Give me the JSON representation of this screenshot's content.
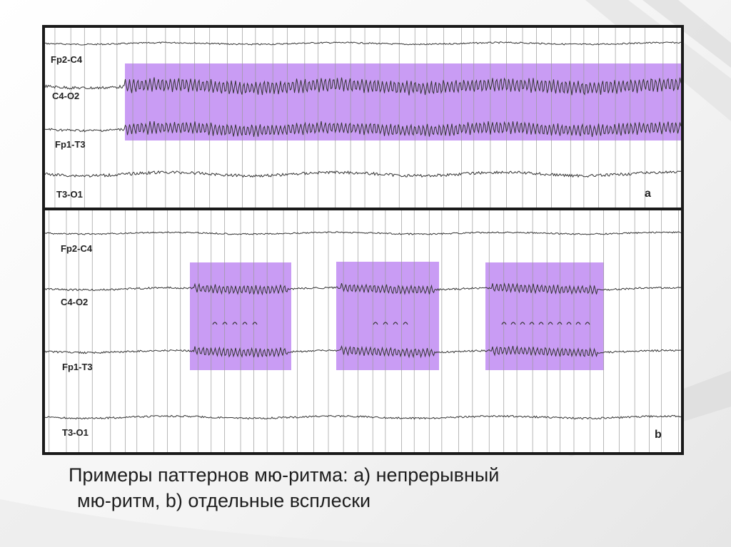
{
  "figure": {
    "panel_a": {
      "letter": "a",
      "channels": [
        {
          "label": "Fp2-C4"
        },
        {
          "label": "C4-O2"
        },
        {
          "label": "Fp1-T3"
        },
        {
          "label": "T3-O1"
        }
      ],
      "highlights": 1
    },
    "panel_b": {
      "letter": "b",
      "channels": [
        {
          "label": "Fp2-C4"
        },
        {
          "label": "C4-O2"
        },
        {
          "label": "Fp1-T3"
        },
        {
          "label": "T3-O1"
        }
      ],
      "highlights": 3
    },
    "highlight_color": "#b77bf0"
  },
  "caption": {
    "line1": "Примеры паттернов мю-ритма: a) непрерывный",
    "line2": "мю-ритм, b) отдельные всплески"
  }
}
